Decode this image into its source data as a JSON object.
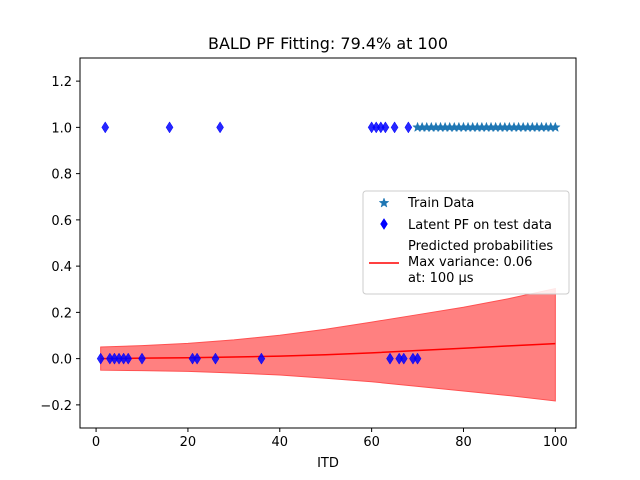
{
  "chart_data": {
    "type": "scatter",
    "title": "BALD PF Fitting: 79.4% at 100",
    "xlabel": "ITD",
    "ylabel": "",
    "xlim": [
      -3.5,
      104.5
    ],
    "ylim": [
      -0.3,
      1.3
    ],
    "x_ticks": [
      0,
      20,
      40,
      60,
      80,
      100
    ],
    "y_ticks": [
      -0.2,
      0.0,
      0.2,
      0.4,
      0.6,
      0.8,
      1.0,
      1.2
    ],
    "x_tick_labels": [
      "0",
      "20",
      "40",
      "60",
      "80",
      "100"
    ],
    "y_tick_labels": [
      "−0.2",
      "0.0",
      "0.2",
      "0.4",
      "0.6",
      "0.8",
      "1.0",
      "1.2"
    ],
    "grid": false,
    "legend_position": "center-right",
    "series": [
      {
        "name": "Train Data",
        "kind": "scatter",
        "marker": "star",
        "color": "#1f77b4",
        "x": [
          70,
          71,
          72,
          73,
          74,
          75,
          76,
          77,
          78,
          79,
          80,
          81,
          82,
          83,
          84,
          85,
          86,
          87,
          88,
          89,
          90,
          91,
          92,
          93,
          94,
          95,
          96,
          97,
          98,
          99,
          100
        ],
        "y": [
          1,
          1,
          1,
          1,
          1,
          1,
          1,
          1,
          1,
          1,
          1,
          1,
          1,
          1,
          1,
          1,
          1,
          1,
          1,
          1,
          1,
          1,
          1,
          1,
          1,
          1,
          1,
          1,
          1,
          1,
          1
        ]
      },
      {
        "name": "Latent PF on test data",
        "kind": "scatter",
        "marker": "diamond",
        "color": "#0000ff",
        "x": [
          1,
          3,
          4,
          5,
          6,
          7,
          10,
          21,
          22,
          26,
          36,
          64,
          66,
          67,
          69,
          70,
          2,
          16,
          27,
          60,
          61,
          62,
          63,
          65,
          68
        ],
        "y": [
          0,
          0,
          0,
          0,
          0,
          0,
          0,
          0,
          0,
          0,
          0,
          0,
          0,
          0,
          0,
          0,
          1,
          1,
          1,
          1,
          1,
          1,
          1,
          1,
          1
        ]
      },
      {
        "name": "Predicted probabilities\nMax variance: 0.06\nat: 100 μs",
        "kind": "line_band",
        "color": "#ff0000",
        "band_color": "#ff8080",
        "x": [
          1,
          10,
          20,
          30,
          40,
          50,
          60,
          70,
          80,
          90,
          100
        ],
        "y": [
          0.0,
          0.002,
          0.004,
          0.007,
          0.011,
          0.017,
          0.025,
          0.035,
          0.045,
          0.055,
          0.065
        ],
        "upper": [
          0.05,
          0.056,
          0.066,
          0.081,
          0.101,
          0.127,
          0.158,
          0.19,
          0.222,
          0.26,
          0.303
        ],
        "lower": [
          -0.05,
          -0.052,
          -0.055,
          -0.062,
          -0.071,
          -0.085,
          -0.1,
          -0.12,
          -0.14,
          -0.16,
          -0.183
        ]
      }
    ]
  }
}
